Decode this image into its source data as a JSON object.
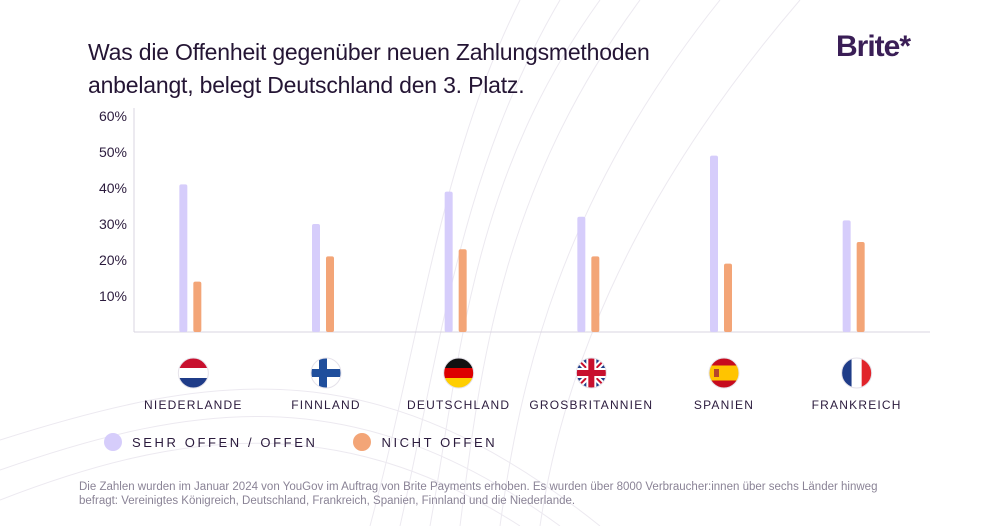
{
  "title": "Was die Offenheit gegenüber neuen Zahlungsmethoden anbelangt, belegt Deutschland den 3. Platz.",
  "logo": {
    "text": "Brite*"
  },
  "legend": [
    {
      "label": "SEHR OFFEN / OFFEN",
      "color": "#d6cdfb"
    },
    {
      "label": "NICHT OFFEN",
      "color": "#f3a577"
    }
  ],
  "footnote": "Die Zahlen wurden im Januar 2024 von YouGov im Auftrag von Brite Payments erhoben. Es wurden über 8000 Verbraucher:innen über sechs Länder hinweg befragt: Vereinigtes Königreich, Deutschland, Frankreich, Spanien, Finnland und die Niederlande.",
  "chart_data": {
    "type": "bar",
    "title": "Was die Offenheit gegenüber neuen Zahlungsmethoden anbelangt, belegt Deutschland den 3. Platz.",
    "xlabel": "",
    "ylabel": "",
    "ylim": [
      0,
      60
    ],
    "yticks": [
      "60%",
      "50%",
      "40%",
      "30%",
      "20%",
      "10%"
    ],
    "ytick_values": [
      60,
      50,
      40,
      30,
      20,
      10
    ],
    "categories": [
      "NIEDERLANDE",
      "FINNLAND",
      "DEUTSCHLAND",
      "GROSBRITANNIEN",
      "SPANIEN",
      "FRANKREICH"
    ],
    "flags": [
      "netherlands-flag",
      "finland-flag",
      "germany-flag",
      "uk-flag",
      "spain-flag",
      "france-flag"
    ],
    "series": [
      {
        "name": "SEHR OFFEN / OFFEN",
        "color": "#d6cdfb",
        "values": [
          41,
          30,
          39,
          32,
          49,
          31
        ]
      },
      {
        "name": "NICHT OFFEN",
        "color": "#f3a577",
        "values": [
          14,
          21,
          23,
          21,
          19,
          25
        ]
      }
    ],
    "grid": false,
    "legend_position": "bottom-left"
  }
}
